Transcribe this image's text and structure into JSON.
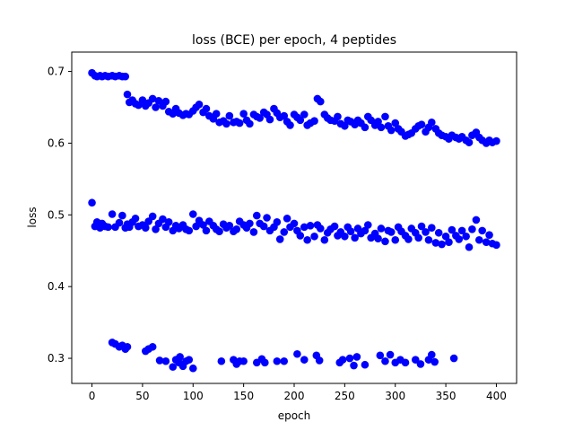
{
  "chart_data": {
    "type": "scatter",
    "title": "loss (BCE) per epoch, 4 peptides",
    "xlabel": "epoch",
    "ylabel": "loss",
    "xlim": [
      -20,
      420
    ],
    "ylim": [
      0.265,
      0.727
    ],
    "xticks": [
      0,
      50,
      100,
      150,
      200,
      250,
      300,
      350,
      400
    ],
    "yticks": [
      0.3,
      0.4,
      0.5,
      0.6,
      0.7
    ],
    "ytick_labels": [
      "0.3",
      "0.4",
      "0.5",
      "0.6",
      "0.7"
    ],
    "grid": false,
    "legend": "none",
    "marker_color": "#0000ff",
    "series": [
      {
        "x": [
          0,
          3,
          5,
          8,
          10,
          13,
          16,
          20,
          23,
          27,
          30,
          33,
          35,
          37,
          40,
          43,
          46,
          50,
          53,
          56,
          60,
          63,
          66,
          70,
          73,
          76,
          80,
          83,
          86,
          90,
          93,
          96,
          100,
          103,
          106,
          110,
          113,
          116,
          120,
          123,
          126,
          130,
          133,
          136,
          140,
          143,
          146,
          150,
          153,
          156,
          160,
          163,
          166,
          170,
          173,
          176,
          180,
          183,
          186,
          190,
          193,
          196,
          200,
          203,
          206,
          210,
          213,
          216,
          220,
          223,
          226,
          230,
          233,
          236,
          240,
          243,
          246,
          250,
          253,
          256,
          260,
          263,
          266,
          270,
          273,
          276,
          280,
          283,
          286,
          290,
          293,
          296,
          300,
          303,
          306,
          310,
          313,
          316,
          320,
          323,
          326,
          330,
          333,
          336,
          340,
          343,
          346,
          350,
          353,
          356,
          360,
          363,
          366,
          370,
          373,
          376,
          380,
          383,
          386,
          390,
          393,
          396,
          400
        ],
        "y": [
          0.698,
          0.694,
          0.693,
          0.694,
          0.693,
          0.694,
          0.693,
          0.694,
          0.693,
          0.694,
          0.693,
          0.693,
          0.668,
          0.657,
          0.66,
          0.655,
          0.653,
          0.66,
          0.652,
          0.656,
          0.662,
          0.65,
          0.659,
          0.652,
          0.658,
          0.644,
          0.641,
          0.648,
          0.642,
          0.639,
          0.641,
          0.64,
          0.645,
          0.65,
          0.654,
          0.643,
          0.648,
          0.638,
          0.634,
          0.641,
          0.629,
          0.631,
          0.627,
          0.638,
          0.629,
          0.63,
          0.628,
          0.641,
          0.632,
          0.627,
          0.64,
          0.637,
          0.635,
          0.643,
          0.64,
          0.633,
          0.648,
          0.642,
          0.636,
          0.638,
          0.63,
          0.625,
          0.64,
          0.636,
          0.632,
          0.64,
          0.625,
          0.628,
          0.631,
          0.662,
          0.658,
          0.64,
          0.635,
          0.632,
          0.631,
          0.637,
          0.627,
          0.624,
          0.632,
          0.63,
          0.626,
          0.632,
          0.628,
          0.622,
          0.637,
          0.632,
          0.625,
          0.63,
          0.622,
          0.637,
          0.624,
          0.618,
          0.628,
          0.62,
          0.616,
          0.61,
          0.612,
          0.614,
          0.62,
          0.624,
          0.626,
          0.616,
          0.622,
          0.629,
          0.62,
          0.614,
          0.611,
          0.609,
          0.606,
          0.611,
          0.608,
          0.606,
          0.609,
          0.604,
          0.601,
          0.611,
          0.615,
          0.608,
          0.604,
          0.6,
          0.604,
          0.601,
          0.603
        ]
      },
      {
        "x": [
          0,
          3,
          5,
          8,
          10,
          13,
          16,
          20,
          23,
          27,
          30,
          33,
          35,
          37,
          40,
          43,
          46,
          50,
          53,
          56,
          60,
          63,
          66,
          70,
          73,
          76,
          80,
          83,
          86,
          90,
          93,
          96,
          100,
          103,
          106,
          110,
          113,
          116,
          120,
          123,
          126,
          130,
          133,
          136,
          140,
          143,
          146,
          150,
          153,
          156,
          160,
          163,
          166,
          170,
          173,
          176,
          180,
          183,
          186,
          190,
          193,
          196,
          200,
          203,
          206,
          210,
          213,
          216,
          220,
          223,
          226,
          230,
          233,
          236,
          240,
          243,
          246,
          250,
          253,
          256,
          260,
          263,
          266,
          270,
          273,
          276,
          280,
          283,
          286,
          290,
          293,
          296,
          300,
          303,
          306,
          310,
          313,
          316,
          320,
          323,
          326,
          330,
          333,
          336,
          340,
          343,
          346,
          350,
          353,
          356,
          360,
          363,
          366,
          370,
          373,
          376,
          380,
          383,
          386,
          390,
          393,
          396,
          400
        ],
        "y": [
          0.517,
          0.484,
          0.49,
          0.482,
          0.488,
          0.484,
          0.483,
          0.501,
          0.483,
          0.489,
          0.499,
          0.482,
          0.487,
          0.483,
          0.49,
          0.495,
          0.484,
          0.486,
          0.482,
          0.491,
          0.498,
          0.48,
          0.488,
          0.494,
          0.483,
          0.49,
          0.478,
          0.485,
          0.481,
          0.486,
          0.48,
          0.478,
          0.501,
          0.484,
          0.492,
          0.486,
          0.478,
          0.491,
          0.485,
          0.48,
          0.477,
          0.487,
          0.482,
          0.485,
          0.477,
          0.48,
          0.491,
          0.486,
          0.482,
          0.488,
          0.476,
          0.499,
          0.488,
          0.484,
          0.496,
          0.478,
          0.483,
          0.49,
          0.466,
          0.476,
          0.495,
          0.483,
          0.488,
          0.478,
          0.471,
          0.483,
          0.465,
          0.485,
          0.47,
          0.486,
          0.481,
          0.465,
          0.475,
          0.48,
          0.484,
          0.471,
          0.476,
          0.47,
          0.483,
          0.477,
          0.468,
          0.481,
          0.474,
          0.478,
          0.486,
          0.468,
          0.474,
          0.467,
          0.481,
          0.463,
          0.478,
          0.476,
          0.465,
          0.483,
          0.477,
          0.471,
          0.466,
          0.481,
          0.475,
          0.468,
          0.484,
          0.476,
          0.465,
          0.482,
          0.461,
          0.475,
          0.459,
          0.47,
          0.462,
          0.479,
          0.471,
          0.466,
          0.478,
          0.47,
          0.455,
          0.48,
          0.493,
          0.465,
          0.478,
          0.462,
          0.472,
          0.46,
          0.458
        ]
      },
      {
        "x": [
          20,
          23,
          27,
          30,
          33,
          35,
          53,
          56,
          60,
          67,
          73,
          80,
          83,
          86,
          87,
          90,
          93,
          96,
          100,
          128,
          140,
          143,
          146,
          150,
          163,
          168,
          171,
          183,
          190,
          203,
          210,
          222,
          225,
          245,
          248,
          255,
          259,
          262,
          270,
          285,
          290,
          295,
          300,
          305,
          310,
          320,
          325,
          333,
          336,
          339,
          358
        ],
        "y": [
          0.322,
          0.32,
          0.316,
          0.318,
          0.313,
          0.316,
          0.31,
          0.313,
          0.316,
          0.297,
          0.296,
          0.288,
          0.298,
          0.294,
          0.302,
          0.289,
          0.296,
          0.298,
          0.286,
          0.296,
          0.298,
          0.292,
          0.296,
          0.296,
          0.294,
          0.299,
          0.294,
          0.296,
          0.296,
          0.306,
          0.298,
          0.304,
          0.297,
          0.294,
          0.298,
          0.3,
          0.29,
          0.302,
          0.291,
          0.304,
          0.296,
          0.305,
          0.294,
          0.298,
          0.294,
          0.298,
          0.292,
          0.298,
          0.305,
          0.295,
          0.3
        ]
      }
    ]
  }
}
